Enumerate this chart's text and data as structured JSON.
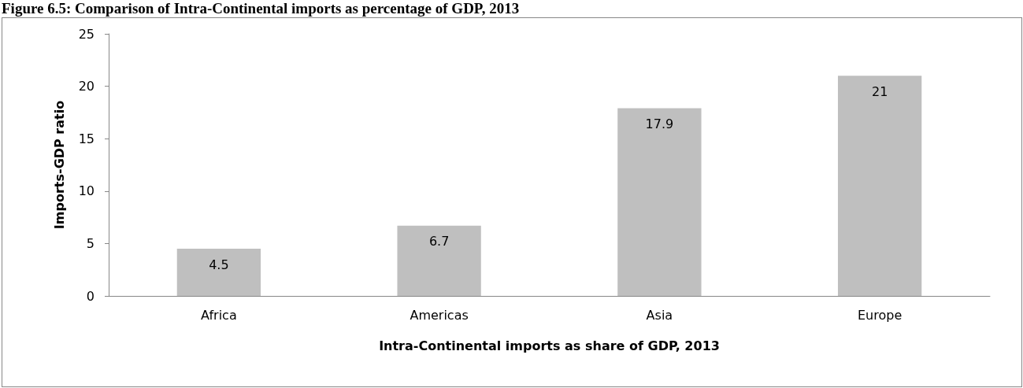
{
  "chart_data": {
    "type": "bar",
    "title": "Figure 6.5: Comparison of Intra-Continental imports as percentage of GDP, 2013",
    "xlabel": "Intra-Continental imports as share of GDP, 2013",
    "ylabel": "Imports-GDP ratio",
    "categories": [
      "Africa",
      "Americas",
      "Asia",
      "Europe"
    ],
    "values": [
      4.5,
      6.7,
      17.9,
      21
    ],
    "color": "#bfbfbf",
    "ylim": [
      0,
      25
    ],
    "yticks": [
      0,
      5,
      10,
      15,
      20,
      25
    ],
    "grid": false,
    "data_labels": true
  }
}
